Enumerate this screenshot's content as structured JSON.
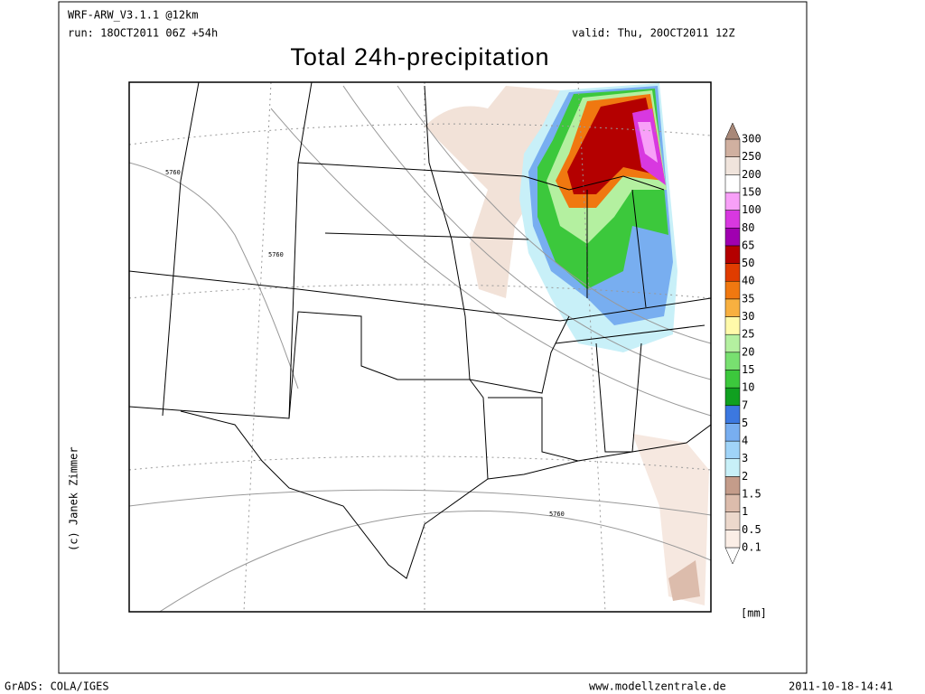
{
  "header": {
    "model": "WRF-ARW_V3.1.1 @12km",
    "run": "run: 18OCT2011 06Z +54h",
    "valid": "valid: Thu, 20OCT2011 12Z",
    "title": "Total 24h-precipitation"
  },
  "map": {
    "contour_labels": [
      "5760",
      "5760",
      "5760"
    ]
  },
  "colorbar": {
    "labels": [
      0.1,
      0.5,
      1,
      1.5,
      2,
      3,
      4,
      5,
      7,
      10,
      15,
      20,
      25,
      30,
      35,
      40,
      50,
      65,
      80,
      100,
      150,
      200,
      250,
      300
    ],
    "colors": [
      "#ffffff",
      "#fbeee6",
      "#ecd8cc",
      "#dcbcac",
      "#c49c8a",
      "#c8f0f8",
      "#a0d4f8",
      "#78aef0",
      "#3c78e0",
      "#10a020",
      "#3cc83c",
      "#78e070",
      "#b4f0a0",
      "#fffaaa",
      "#f8b040",
      "#f07810",
      "#e03c00",
      "#b40000",
      "#a000b0",
      "#d838e0",
      "#f8a0f8",
      "#ffffff",
      "#f0e4dc",
      "#d0b0a0",
      "#a88878"
    ],
    "unit": "[mm]"
  },
  "credit": "(c) Janek Zimmer",
  "footer": {
    "left": "GrADS: COLA/IGES",
    "center": "www.modellzentrale.de",
    "right": "2011-10-18-14:41"
  }
}
